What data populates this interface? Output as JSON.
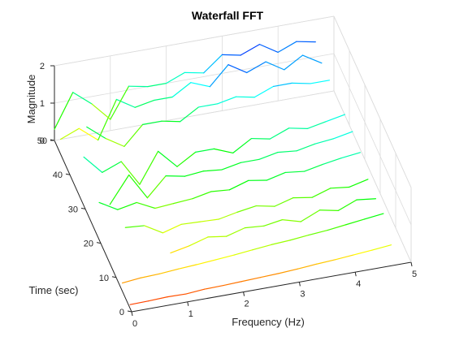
{
  "chart_data": {
    "type": "line",
    "title": "Waterfall FFT",
    "xlabel": "Frequency (Hz)",
    "ylabel": "Time (sec)",
    "zlabel": "Magnitude",
    "xlim": [
      0,
      5
    ],
    "ylim": [
      0,
      50
    ],
    "zlim": [
      0,
      2
    ],
    "xticks": [
      "0",
      "1",
      "2",
      "3",
      "4",
      "5"
    ],
    "yticks": [
      "0",
      "10",
      "20",
      "30",
      "40",
      "50"
    ],
    "zticks": [
      "0",
      "1",
      "2"
    ],
    "grid": true,
    "colormap": "hsv",
    "frequencies": [
      0,
      0.33,
      0.67,
      1.0,
      1.33,
      1.67,
      2.0,
      2.33,
      2.67,
      3.0,
      3.33,
      3.67,
      4.0,
      4.33,
      4.67
    ],
    "series": [
      {
        "time": 1,
        "values": [
          0.1,
          0.11,
          0.13,
          0.12,
          0.16,
          0.17,
          0.19,
          0.21,
          0.23,
          0.26,
          0.3,
          0.33,
          0.37,
          0.41,
          0.46
        ]
      },
      {
        "time": 6,
        "values": [
          0.22,
          0.27,
          0.29,
          0.33,
          0.36,
          0.4,
          0.44,
          0.49,
          0.54,
          0.57,
          0.62,
          0.66,
          0.72,
          0.78,
          0.84
        ]
      },
      {
        "time": 11,
        "values": [
          null,
          null,
          null,
          0.3,
          0.4,
          0.55,
          0.48,
          0.62,
          0.58,
          0.66,
          0.52,
          0.74,
          0.64,
          0.84,
          0.78
        ]
      },
      {
        "time": 16,
        "values": [
          null,
          0.7,
          0.66,
          0.38,
          0.52,
          0.5,
          0.48,
          0.58,
          0.66,
          0.56,
          0.7,
          0.62,
          0.78,
          0.72,
          0.84
        ]
      },
      {
        "time": 21,
        "values": [
          1.0,
          0.72,
          0.82,
          0.58,
          0.62,
          0.66,
          0.76,
          0.72,
          0.88,
          0.8,
          0.92,
          0.86,
          0.96,
          1.04,
          1.1
        ]
      },
      {
        "time": 26,
        "values": [
          null,
          0.4,
          1.1,
          0.4,
          0.9,
          0.8,
          0.85,
          0.8,
          0.9,
          0.9,
          1.0,
          0.95,
          1.05,
          1.1,
          1.2
        ]
      },
      {
        "time": 31,
        "values": [
          1.3,
          0.8,
          1.0,
          0.3,
          1.1,
          0.6,
          0.9,
          0.9,
          0.7,
          1.0,
          0.9,
          1.1,
          1.0,
          1.1,
          1.2
        ]
      },
      {
        "time": 36,
        "values": [
          null,
          null,
          null,
          null,
          null,
          null,
          null,
          null,
          null,
          null,
          null,
          null,
          null,
          null,
          null
        ]
      },
      {
        "time": 41,
        "values": [
          null,
          1.1,
          0.7,
          0.4,
          0.9,
          0.9,
          0.8,
          1.1,
          1.1,
          1.2,
          1.1,
          1.3,
          1.3,
          1.2,
          1.2
        ]
      },
      {
        "time": 46,
        "values": [
          0.4,
          0.6,
          0.2,
          1.2,
          0.9,
          1.0,
          1.0,
          1.3,
          1.1,
          1.6,
          1.3,
          1.5,
          1.2,
          1.5,
          1.2
        ]
      },
      {
        "time": 50,
        "values": [
          0.3,
          1.2,
          0.8,
          0.3,
          1.1,
          1.0,
          1.0,
          1.2,
          1.1,
          1.5,
          1.4,
          1.6,
          1.3,
          1.5,
          1.4
        ]
      }
    ]
  }
}
